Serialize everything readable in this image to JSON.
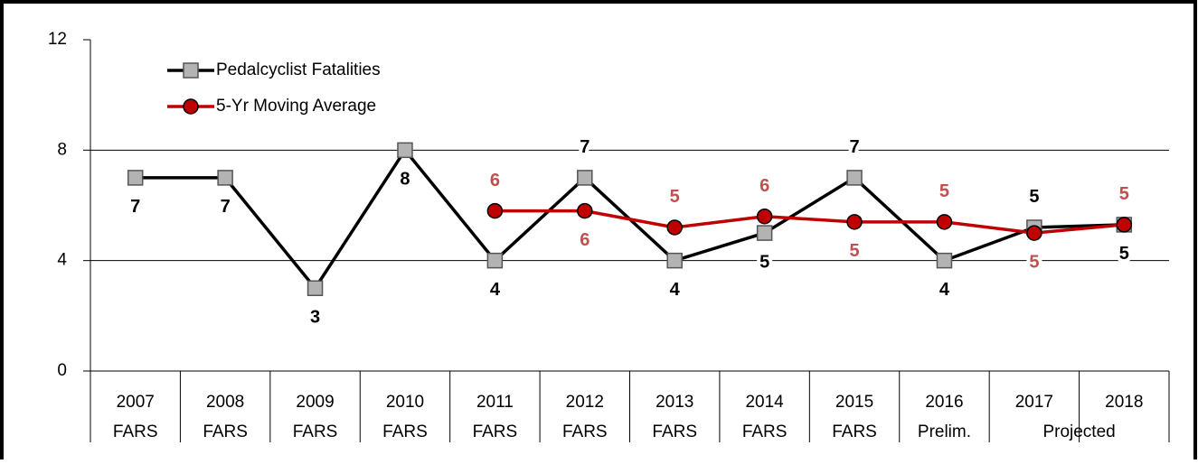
{
  "chart_data": {
    "type": "line",
    "categories": [
      "2007",
      "2008",
      "2009",
      "2010",
      "2011",
      "2012",
      "2013",
      "2014",
      "2015",
      "2016",
      "2017",
      "2018"
    ],
    "sublabels": [
      "FARS",
      "FARS",
      "FARS",
      "FARS",
      "FARS",
      "FARS",
      "FARS",
      "FARS",
      "FARS",
      "Prelim.",
      "Projected",
      null
    ],
    "series": [
      {
        "name": "Pedalcyclist Fatalities",
        "color": "#000000",
        "marker_color": "#b3b3b3",
        "marker": "square",
        "values": [
          7,
          7,
          3,
          8,
          4,
          7,
          4,
          5,
          7,
          4,
          5.2,
          5.3
        ],
        "value_labels": [
          "7",
          "7",
          "3",
          "8",
          "4",
          "7",
          "4",
          "5",
          "7",
          "4",
          "5",
          "5"
        ]
      },
      {
        "name": "5-Yr Moving Average",
        "color": "#c00000",
        "marker_color": "#c00000",
        "marker": "circle",
        "label_color": "#c0504d",
        "values": [
          null,
          null,
          null,
          null,
          5.8,
          5.8,
          5.2,
          5.6,
          5.4,
          5.4,
          5.0,
          5.3
        ],
        "value_labels": [
          null,
          null,
          null,
          null,
          "6",
          "6",
          "5",
          "6",
          "5",
          "5",
          "5",
          "5"
        ]
      }
    ],
    "ylim": [
      0,
      12
    ],
    "yticks": [
      0,
      4,
      8,
      12
    ],
    "grid": true,
    "legend": "top-left"
  }
}
